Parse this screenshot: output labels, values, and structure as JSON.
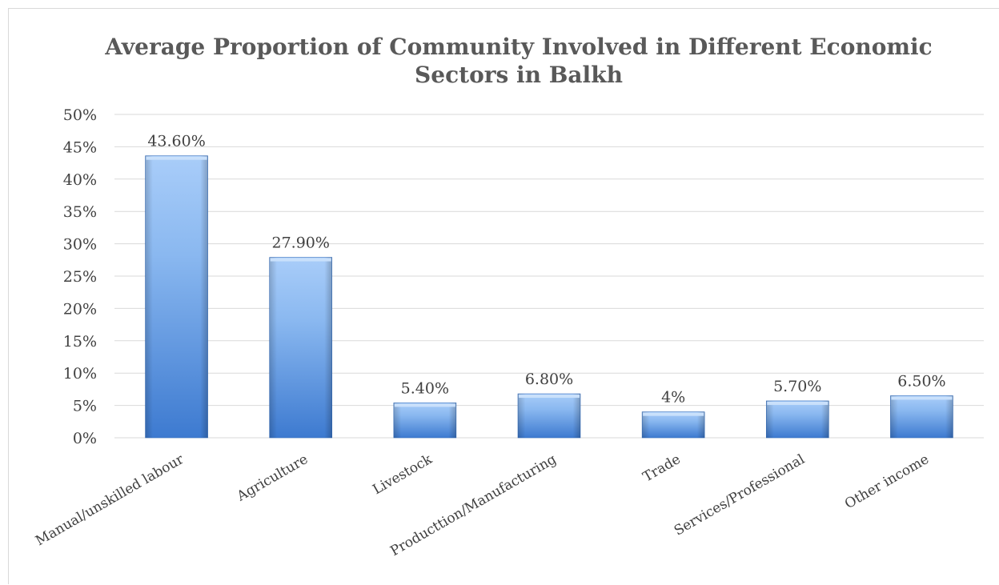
{
  "chart_data": {
    "type": "bar",
    "title_lines": [
      "Average Proportion of Community Involved in Different Economic",
      "Sectors in Balkh"
    ],
    "categories": [
      "Manual/unskilled labour",
      "Agriculture",
      "Livestock",
      "Producttion/Manufacturing",
      "Trade",
      "Services/Professional",
      "Other income"
    ],
    "values": [
      43.6,
      27.9,
      5.4,
      6.8,
      4,
      5.7,
      6.5
    ],
    "data_labels": [
      "43.60%",
      "27.90%",
      "5.40%",
      "6.80%",
      "4%",
      "5.70%",
      "6.50%"
    ],
    "y_ticks": [
      "0%",
      "5%",
      "10%",
      "15%",
      "20%",
      "25%",
      "30%",
      "35%",
      "40%",
      "45%",
      "50%"
    ],
    "ylim": [
      0,
      50
    ],
    "grid": true,
    "legend": "none",
    "colors": {
      "bar_top": "#a9cdf9",
      "bar_mid": "#8ab8f0",
      "bar_bottom": "#3d7ad0",
      "bar_cap": "#c9e0fb",
      "bar_edge": "#2f6bbd",
      "gridline": "#d9d9d9",
      "text": "#404040",
      "title": "#595959"
    }
  }
}
